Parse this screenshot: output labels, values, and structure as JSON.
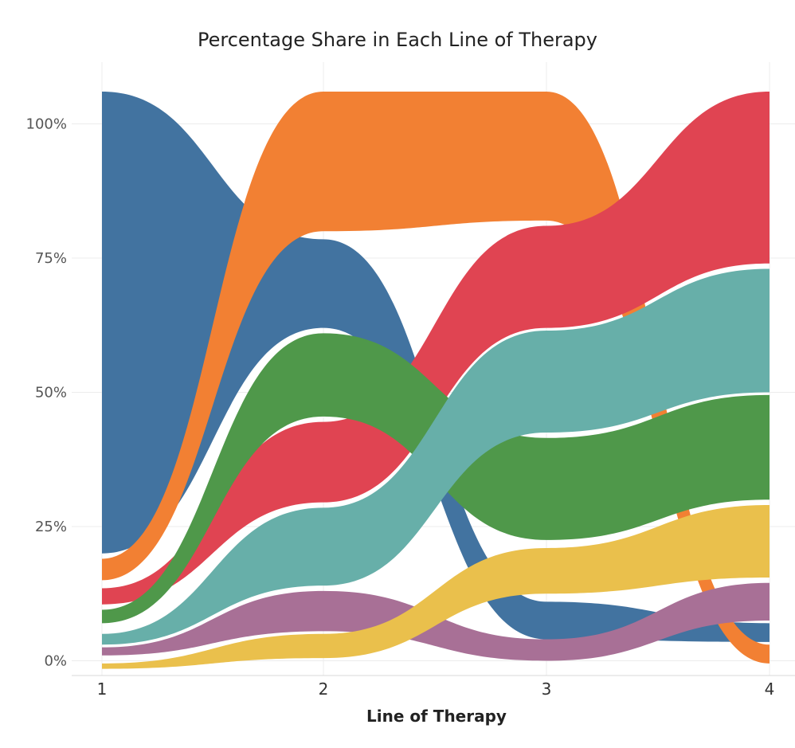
{
  "chart_data": {
    "type": "area",
    "title": "Percentage Share in Each Line of Therapy",
    "xlabel": "Line of Therapy",
    "ylabel": "",
    "x": [
      1,
      2,
      3,
      4
    ],
    "x_ticks": [
      "1",
      "2",
      "3",
      "4"
    ],
    "y_ticks": [
      "0%",
      "25%",
      "50%",
      "75%",
      "100%"
    ],
    "y_tick_values": [
      0,
      25,
      50,
      75,
      100
    ],
    "ylim": [
      -1.5,
      108
    ],
    "grid": true,
    "legend": "none",
    "series": [
      {
        "color": "#4273A0",
        "ranges": [
          [
            20,
            106
          ],
          [
            62,
            78.5
          ],
          [
            4,
            11
          ],
          [
            3.5,
            7
          ]
        ]
      },
      {
        "color": "#F28033",
        "ranges": [
          [
            15,
            19
          ],
          [
            80,
            106
          ],
          [
            82,
            106
          ],
          [
            -0.5,
            3
          ]
        ]
      },
      {
        "color": "#E04452",
        "ranges": [
          [
            10.5,
            13.5
          ],
          [
            29.5,
            44.5
          ],
          [
            62,
            81
          ],
          [
            74,
            106
          ]
        ]
      },
      {
        "color": "#4F984A",
        "ranges": [
          [
            7,
            9.5
          ],
          [
            45.5,
            61
          ],
          [
            22.5,
            41.5
          ],
          [
            30,
            49.5
          ]
        ]
      },
      {
        "color": "#67AFA9",
        "ranges": [
          [
            3,
            5
          ],
          [
            14,
            28.5
          ],
          [
            42.5,
            61.5
          ],
          [
            50,
            73
          ]
        ]
      },
      {
        "color": "#A87096",
        "ranges": [
          [
            1,
            2.5
          ],
          [
            5.5,
            13
          ],
          [
            0,
            4
          ],
          [
            7.5,
            14.5
          ]
        ]
      },
      {
        "color": "#EAC04C",
        "ranges": [
          [
            -1.5,
            -0.5
          ],
          [
            0.5,
            5
          ],
          [
            12.5,
            21
          ],
          [
            15.5,
            29
          ]
        ]
      }
    ]
  }
}
